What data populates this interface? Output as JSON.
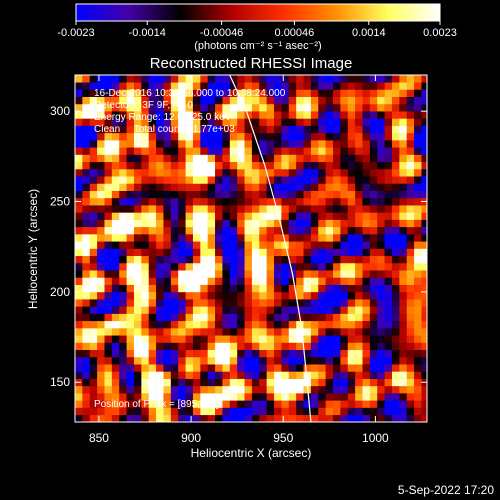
{
  "chart_data": {
    "type": "heatmap",
    "title": "Reconstructed RHESSI Image",
    "xlabel": "Heliocentric X (arcsec)",
    "ylabel": "Heliocentric Y (arcsec)",
    "xlim": [
      837,
      1028
    ],
    "ylim": [
      128,
      320
    ],
    "xticks": [
      850,
      900,
      950,
      1000
    ],
    "yticks": [
      150,
      200,
      250,
      300
    ],
    "colorbar": {
      "range": [
        -0.0023,
        0.0023
      ],
      "ticks": [
        -0.0023,
        -0.0014,
        -0.00046,
        0.00046,
        0.0014,
        0.0023
      ],
      "tick_labels": [
        "-0.0023",
        "-0.0014",
        "-0.00046",
        "0.00046",
        "0.0014",
        "0.0023"
      ],
      "unit_label": "(photons cm⁻² s⁻¹ asec⁻²)",
      "colormap": [
        "#0000ff",
        "#4400aa",
        "#000000",
        "#b00000",
        "#ff3000",
        "#ff9000",
        "#ffff60",
        "#ffffff"
      ]
    },
    "annotations": [
      "16-Dec-2016 10:35:56.000 to 10:38:24.000",
      "Detectors: 3F 9F, Att 0",
      "Energy Range: 12.0 - 25.0 keV",
      "Clean     Total counts: 1.77e+03"
    ],
    "peak_label": "Position of Peak = [895,311]",
    "limb_curve": [
      [
        920,
        322
      ],
      [
        930,
        300
      ],
      [
        940,
        270
      ],
      [
        948,
        240
      ],
      [
        955,
        210
      ],
      [
        960,
        180
      ],
      [
        963,
        150
      ],
      [
        965,
        128
      ]
    ],
    "grid_cell_arcsec": 4,
    "hot_spots": [
      [
        898,
        205
      ],
      [
        862,
        238
      ],
      [
        958,
        145
      ],
      [
        1008,
        150
      ],
      [
        870,
        280
      ],
      [
        915,
        160
      ],
      [
        940,
        300
      ],
      [
        985,
        250
      ],
      [
        1015,
        205
      ],
      [
        855,
        180
      ],
      [
        905,
        268
      ],
      [
        945,
        225
      ],
      [
        880,
        150
      ],
      [
        1000,
        300
      ]
    ]
  },
  "footer": {
    "date": "5-Sep-2022 17:20"
  }
}
